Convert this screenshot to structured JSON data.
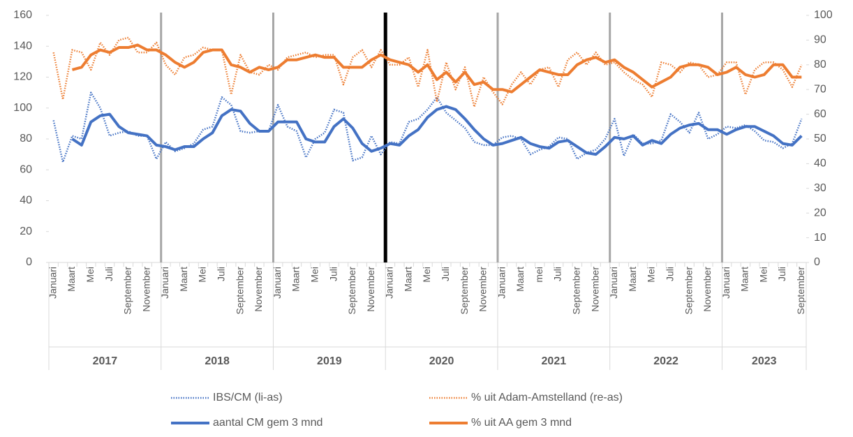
{
  "chart_data": {
    "type": "line",
    "categories": [
      "Januari",
      null,
      "Maart",
      null,
      "Mei",
      null,
      "Juli",
      null,
      "September",
      null,
      "November",
      null,
      "Januari",
      null,
      "Maart",
      null,
      "Mei",
      null,
      "Juli",
      null,
      "September",
      null,
      "November",
      null,
      "Januari",
      null,
      "Maart",
      null,
      "Mei",
      null,
      "Juli",
      null,
      "September",
      null,
      "November",
      null,
      "Januari",
      null,
      "Maart",
      null,
      "Mei",
      null,
      "Juli",
      null,
      "September",
      null,
      "November",
      null,
      "Januari",
      null,
      "Maart",
      null,
      "mei",
      null,
      "Juli",
      null,
      "September",
      null,
      "November",
      null,
      "Januari",
      null,
      "Maart",
      null,
      "Mei",
      null,
      "Juli",
      null,
      "September",
      null,
      "November",
      null,
      "Januari",
      null,
      "Maart",
      null,
      "Mei",
      null,
      "Juli",
      null,
      "September"
    ],
    "groups": [
      {
        "label": "2017",
        "count": 12
      },
      {
        "label": "2018",
        "count": 12
      },
      {
        "label": "2019",
        "count": 12
      },
      {
        "label": "2020",
        "count": 12
      },
      {
        "label": "2021",
        "count": 12
      },
      {
        "label": "2022",
        "count": 12
      },
      {
        "label": "2023",
        "count": 9
      }
    ],
    "ylim": [
      0,
      160
    ],
    "yticks": [
      0,
      20,
      40,
      60,
      80,
      100,
      120,
      140,
      160
    ],
    "y2lim": [
      0,
      100
    ],
    "y2ticks": [
      0,
      10,
      20,
      30,
      40,
      50,
      60,
      70,
      80,
      90,
      100
    ],
    "series": [
      {
        "name": "IBS/CM (li-as)",
        "color": "#4472c4",
        "style": "dotted",
        "values": [
          92,
          65,
          82,
          80,
          110,
          100,
          82,
          84,
          85,
          82,
          82,
          67,
          78,
          72,
          74,
          77,
          86,
          88,
          107,
          102,
          85,
          84,
          85,
          85,
          102,
          88,
          85,
          68,
          80,
          84,
          99,
          97,
          66,
          68,
          82,
          70,
          78,
          77,
          91,
          93,
          99,
          107,
          97,
          92,
          87,
          78,
          76,
          76,
          81,
          82,
          80,
          70,
          73,
          75,
          81,
          80,
          67,
          71,
          73,
          80,
          93,
          69,
          83,
          77,
          77,
          79,
          96,
          91,
          84,
          97,
          80,
          83,
          88,
          87,
          89,
          85,
          79,
          78,
          74,
          77,
          93
        ]
      },
      {
        "name": "% uit Adam-Amstelland (re-as)",
        "color": "#ed7d31",
        "style": "dotted",
        "axis": "y2",
        "values": [
          85,
          66,
          86,
          85,
          78,
          89,
          84,
          90,
          91,
          85,
          85,
          89,
          80,
          76,
          83,
          84,
          87,
          86,
          86,
          68,
          84,
          77,
          76,
          80,
          78,
          83,
          84,
          85,
          83,
          84,
          84,
          72,
          83,
          86,
          79,
          86,
          80,
          80,
          83,
          71,
          86,
          65,
          81,
          70,
          79,
          63,
          75,
          69,
          64,
          72,
          77,
          72,
          78,
          79,
          71,
          82,
          85,
          80,
          85,
          80,
          81,
          77,
          74,
          72,
          67,
          81,
          80,
          77,
          81,
          80,
          75,
          76,
          81,
          81,
          68,
          78,
          81,
          81,
          78,
          71,
          80
        ]
      },
      {
        "name": "aantal CM gem 3 mnd",
        "color": "#4472c4",
        "style": "solid",
        "values": [
          null,
          null,
          80,
          76,
          91,
          95,
          96,
          88,
          84,
          83,
          82,
          76,
          75,
          73,
          75,
          75,
          80,
          84,
          95,
          99,
          98,
          90,
          85,
          85,
          91,
          91,
          91,
          80,
          78,
          78,
          88,
          93,
          87,
          77,
          72,
          74,
          77,
          76,
          82,
          86,
          94,
          99,
          101,
          99,
          93,
          86,
          80,
          76,
          77,
          79,
          81,
          77,
          75,
          74,
          78,
          79,
          75,
          71,
          70,
          75,
          81,
          80,
          82,
          76,
          79,
          77,
          83,
          87,
          89,
          90,
          86,
          86,
          83,
          86,
          88,
          88,
          85,
          82,
          77,
          76,
          82
        ]
      },
      {
        "name": "% uit AA gem 3 mnd",
        "color": "#ed7d31",
        "style": "solid",
        "axis": "y2",
        "values": [
          null,
          null,
          78,
          79,
          84,
          86,
          85,
          87,
          87,
          88,
          86,
          86,
          84,
          81,
          79,
          81,
          85,
          86,
          86,
          80,
          79,
          77,
          79,
          78,
          79,
          82,
          82,
          83,
          84,
          83,
          83,
          79,
          79,
          79,
          82,
          84,
          82,
          81,
          80,
          77,
          80,
          74,
          77,
          73,
          77,
          72,
          73,
          70,
          70,
          69,
          72,
          75,
          78,
          77,
          76,
          76,
          80,
          82,
          83,
          81,
          82,
          79,
          77,
          74,
          71,
          73,
          75,
          79,
          80,
          80,
          79,
          76,
          77,
          79,
          76,
          75,
          76,
          80,
          80,
          75,
          75
        ]
      }
    ]
  }
}
